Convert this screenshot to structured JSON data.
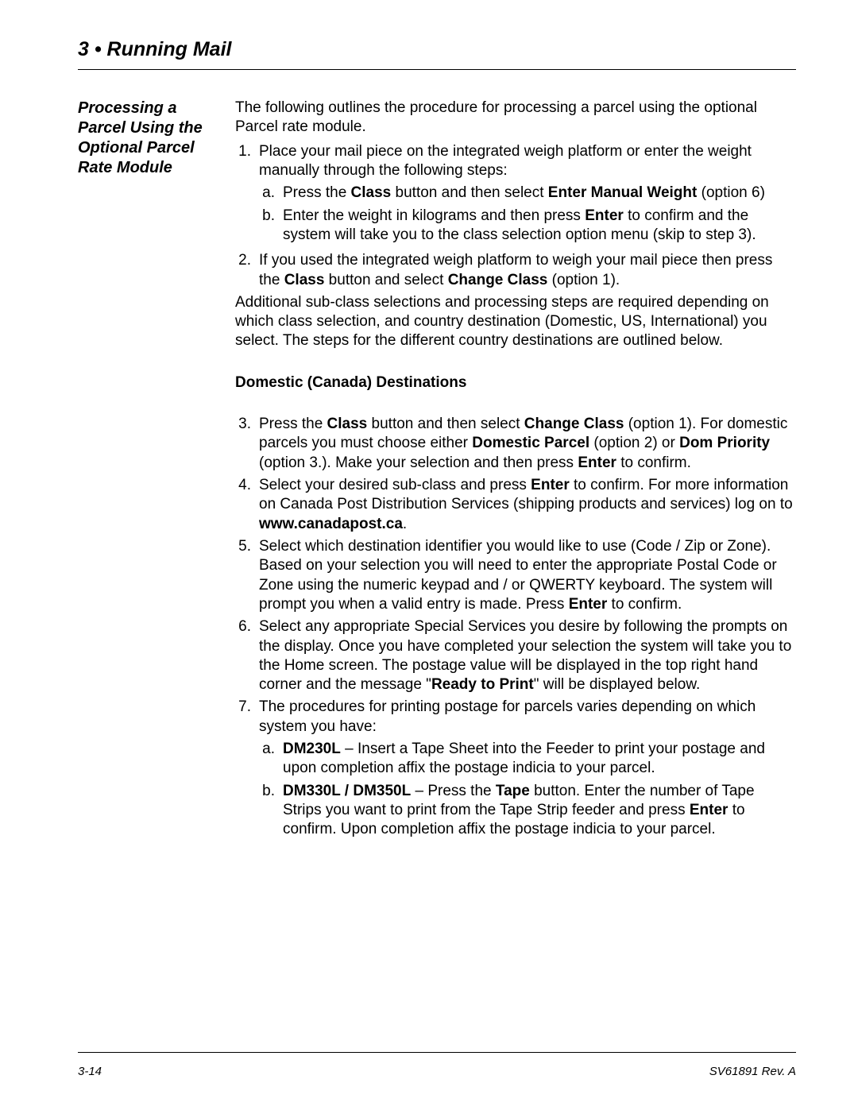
{
  "chapter_title": "3 • Running Mail",
  "side_heading": "Processing a Parcel Using the Optional Parcel Rate Module",
  "intro": "The following outlines the procedure for processing a parcel using the optional Parcel rate module.",
  "step1_lead": "Place your mail piece on the integrated weigh platform or enter the weight manually through the following steps:",
  "step1a_pre": "Press the ",
  "step1a_b1": "Class",
  "step1a_mid": " button and then select ",
  "step1a_b2": "Enter Manual Weight",
  "step1a_post": " (option 6)",
  "step1b_pre": "Enter the weight in kilograms and then press ",
  "step1b_b1": "Enter",
  "step1b_post": " to confirm and the system will take you to the class selection option menu (skip to step 3).",
  "step2_pre": "If you used the integrated weigh platform to weigh your mail piece then press the ",
  "step2_b1": "Class",
  "step2_mid": " button and select ",
  "step2_b2": "Change Class",
  "step2_post": " (option 1).",
  "add_para": "Additional sub-class selections and processing steps are required depending on which class selection, and country destination (Domestic, US, International) you select. The steps for the different country destinations are outlined below.",
  "sub_heading": "Domestic (Canada) Destinations",
  "step3_pre": "Press the ",
  "step3_b1": "Class",
  "step3_mid1": " button and then select ",
  "step3_b2": "Change Class",
  "step3_mid2": " (option 1). For domestic parcels you must choose either ",
  "step3_b3": "Domestic Parcel",
  "step3_mid3": " (option 2) or ",
  "step3_b4": "Dom Priority",
  "step3_mid4": " (option 3.). Make your selection and then press ",
  "step3_b5": "Enter",
  "step3_post": " to confirm.",
  "step4_pre": "Select your desired sub-class and press ",
  "step4_b1": "Enter",
  "step4_mid": " to confirm. For more information on Canada Post Distribution Services (shipping products and services) log on to ",
  "step4_b2": "www.canadapost.ca",
  "step4_post": ".",
  "step5_pre": "Select which destination identifier you would like to use (Code / Zip or Zone). Based on your selection you will need to enter the appropriate Postal Code or Zone using the numeric keypad and / or QWERTY keyboard. The system will prompt you when a valid entry is made. Press ",
  "step5_b1": "Enter",
  "step5_post": " to confirm.",
  "step6_pre": "Select any appropriate Special Services you desire by following the prompts on the display. Once you have completed your selection the system will take you to the Home screen. The postage value will be displayed in the top right hand corner and the message \"",
  "step6_b1": "Ready to Print",
  "step6_post": "\" will be displayed below.",
  "step7_lead": "The procedures for printing postage for parcels varies depending on which system you have:",
  "step7a_b1": "DM230L",
  "step7a_post": " – Insert a Tape Sheet into the Feeder to print your postage and upon completion affix the postage indicia to your parcel.",
  "step7b_b1": "DM330L / DM350L",
  "step7b_mid1": " – Press the ",
  "step7b_b2": "Tape",
  "step7b_mid2": " button. Enter the number of Tape Strips you want to print from the Tape Strip feeder and press ",
  "step7b_b3": "Enter",
  "step7b_post": " to confirm. Upon completion affix the postage indicia to your parcel.",
  "footer_left": "3-14",
  "footer_right": "SV61891 Rev. A",
  "n1": "1.",
  "n2": "2.",
  "n3": "3.",
  "n4": "4.",
  "n5": "5.",
  "n6": "6.",
  "n7": "7.",
  "la": "a.",
  "lb": "b."
}
